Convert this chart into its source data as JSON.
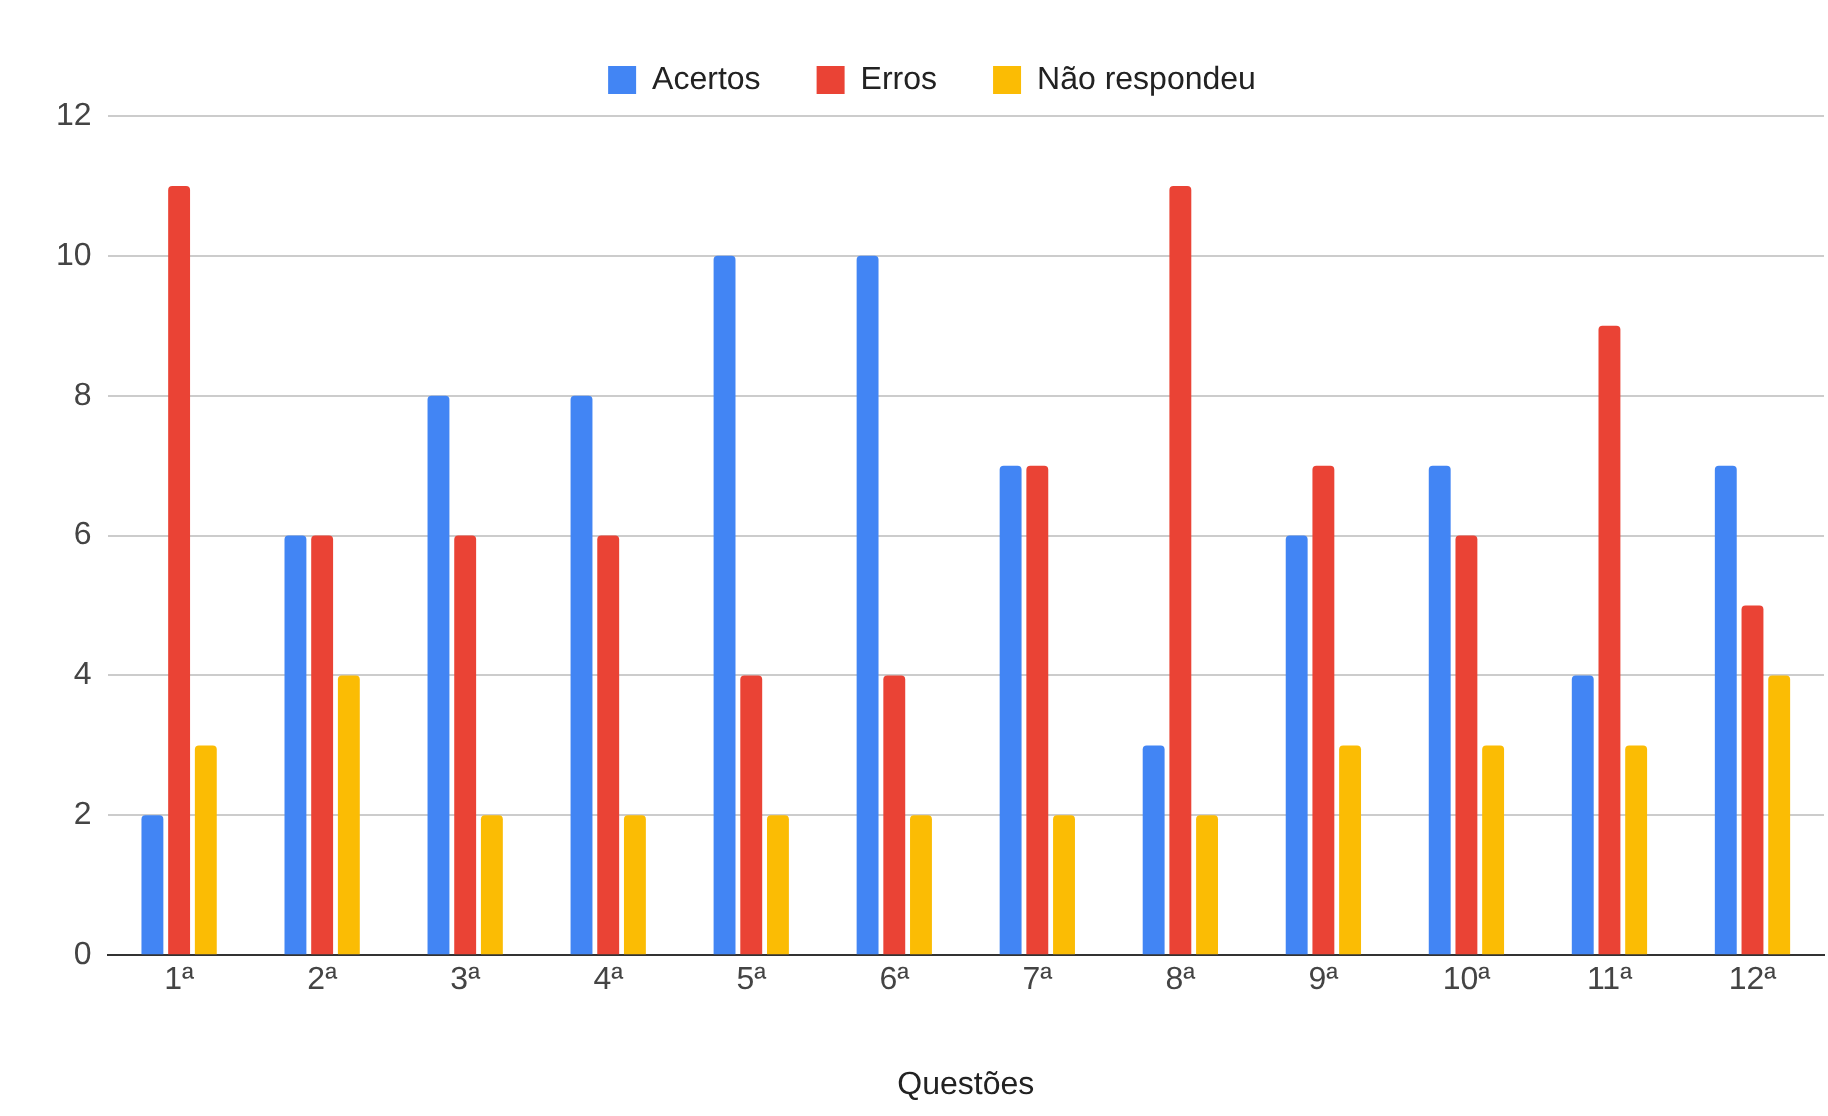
{
  "chart_data": {
    "type": "bar",
    "xlabel": "Questões",
    "categories": [
      "1ª",
      "2ª",
      "3ª",
      "4ª",
      "5ª",
      "6ª",
      "7ª",
      "8ª",
      "9ª",
      "10ª",
      "11ª",
      "12ª"
    ],
    "series": [
      {
        "name": "Acertos",
        "color": "#4285f4",
        "values": [
          2,
          6,
          8,
          8,
          10,
          10,
          7,
          3,
          6,
          7,
          4,
          7
        ]
      },
      {
        "name": "Erros",
        "color": "#ea4335",
        "values": [
          11,
          6,
          6,
          6,
          4,
          4,
          7,
          11,
          7,
          6,
          9,
          5
        ]
      },
      {
        "name": "Não respondeu",
        "color": "#fbbc04",
        "values": [
          3,
          4,
          2,
          2,
          2,
          2,
          2,
          2,
          3,
          3,
          3,
          4
        ]
      }
    ],
    "ylim": [
      0,
      12
    ],
    "yticks": [
      0,
      2,
      4,
      6,
      8,
      10,
      12
    ],
    "grid": "y",
    "legend": "top"
  }
}
